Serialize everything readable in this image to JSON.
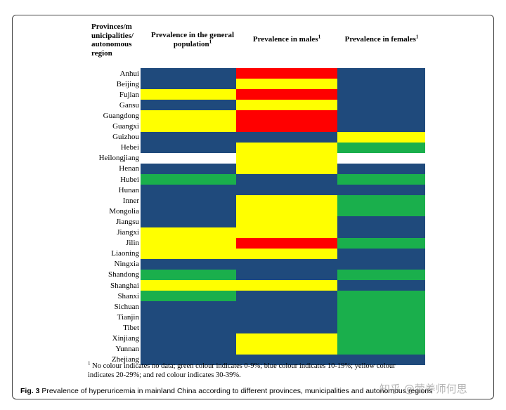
{
  "chart_data": {
    "type": "heatmap",
    "headers": {
      "region": "Provinces/m unicipalities/ autonomous region",
      "general": "Prevalence in the general population",
      "males": "Prevalence in males",
      "females": "Prevalence in females",
      "footnote_marker": "1"
    },
    "color_scale": {
      "none": "#ffffff",
      "green": "#1aaf4c",
      "blue": "#1f4a7c",
      "yellow": "#ffff00",
      "red": "#ff0000"
    },
    "rows": [
      {
        "label": "Anhui",
        "general": "blue",
        "males": "red",
        "females": "blue"
      },
      {
        "label": "Beijing",
        "general": "blue",
        "males": "yellow",
        "females": "blue"
      },
      {
        "label": "Fujian",
        "general": "yellow",
        "males": "red",
        "females": "blue"
      },
      {
        "label": "Gansu",
        "general": "blue",
        "males": "yellow",
        "females": "blue"
      },
      {
        "label": "Guangdong",
        "general": "yellow",
        "males": "red",
        "females": "blue"
      },
      {
        "label": "Guangxi",
        "general": "yellow",
        "males": "red",
        "females": "blue"
      },
      {
        "label": "Guizhou",
        "general": "blue",
        "males": "blue",
        "females": "yellow"
      },
      {
        "label": "Hebei",
        "general": "blue",
        "males": "yellow",
        "females": "green"
      },
      {
        "label": "Heilongjiang",
        "general": "none",
        "males": "yellow",
        "females": "none"
      },
      {
        "label": "Henan",
        "general": "blue",
        "males": "yellow",
        "females": "blue"
      },
      {
        "label": "Hubei",
        "general": "green",
        "males": "blue",
        "females": "green"
      },
      {
        "label": "Hunan",
        "general": "blue",
        "males": "blue",
        "females": "blue"
      },
      {
        "label": "Inner Mongolia",
        "general": "blue",
        "males": "yellow",
        "females": "green"
      },
      {
        "label": "Jiangsu",
        "general": "blue",
        "males": "yellow",
        "females": "blue"
      },
      {
        "label": "Jiangxi",
        "general": "yellow",
        "males": "yellow",
        "females": "blue"
      },
      {
        "label": "Jilin",
        "general": "yellow",
        "males": "red",
        "females": "green"
      },
      {
        "label": "Liaoning",
        "general": "yellow",
        "males": "yellow",
        "females": "blue"
      },
      {
        "label": "Ningxia",
        "general": "blue",
        "males": "blue",
        "females": "blue"
      },
      {
        "label": "Shandong",
        "general": "green",
        "males": "blue",
        "females": "green"
      },
      {
        "label": "Shanghai",
        "general": "yellow",
        "males": "yellow",
        "females": "blue"
      },
      {
        "label": "Shanxi",
        "general": "green",
        "males": "blue",
        "females": "green"
      },
      {
        "label": "Sichuan",
        "general": "blue",
        "males": "blue",
        "females": "green"
      },
      {
        "label": "Tianjin",
        "general": "blue",
        "males": "blue",
        "females": "green"
      },
      {
        "label": "Tibet",
        "general": "blue",
        "males": "blue",
        "females": "green"
      },
      {
        "label": "Xinjiang",
        "general": "blue",
        "males": "yellow",
        "females": "green"
      },
      {
        "label": "Yunnan",
        "general": "blue",
        "males": "yellow",
        "females": "green"
      },
      {
        "label": "Zhejiang",
        "general": "blue",
        "males": "blue",
        "females": "blue"
      }
    ]
  },
  "footnote": "No colour indicates no data; green colour indicates 0-9%; blue colour indicates 10-19%; yellow colour indicates 20-29%; and red colour indicates 30-39%.",
  "caption": {
    "label": "Fig. 3",
    "text": "Prevalence of hyperuricemia in mainland China according to different provinces, municipalities and autonomous regions"
  },
  "watermark": "知乎 @营养师何思"
}
